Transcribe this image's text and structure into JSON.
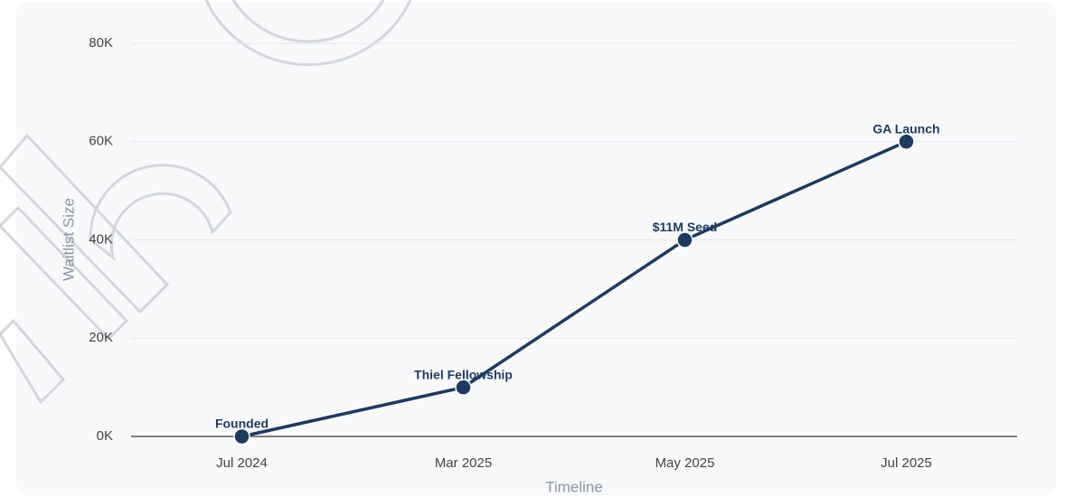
{
  "chart_data": {
    "type": "line",
    "x_label": "Timeline",
    "y_label": "Waitlist Size",
    "categories": [
      "Jul 2024",
      "Mar 2025",
      "May 2025",
      "Jul 2025"
    ],
    "values": [
      0,
      10000,
      40000,
      60000
    ],
    "annotations": [
      "Founded",
      "Thiel Fellowship",
      "$11M Seed",
      "GA Launch"
    ],
    "color": "#1e3a5f",
    "ylim": [
      0,
      80000
    ],
    "yticks": [
      {
        "value": 0,
        "label": "0K"
      },
      {
        "value": 20000,
        "label": "20K"
      },
      {
        "value": 40000,
        "label": "40K"
      },
      {
        "value": 60000,
        "label": "60K"
      },
      {
        "value": 80000,
        "label": "80K"
      }
    ],
    "grid": true
  }
}
